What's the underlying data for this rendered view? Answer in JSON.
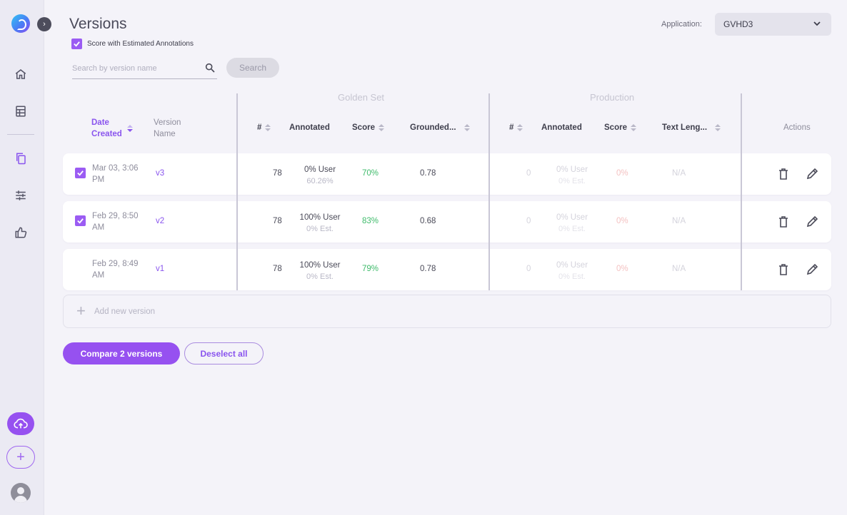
{
  "page": {
    "title": "Versions"
  },
  "estimate_toggle": {
    "label": "Score with Estimated Annotations",
    "checked": true
  },
  "search": {
    "placeholder": "Search by version name",
    "button_label": "Search"
  },
  "application": {
    "label": "Application:",
    "value": "GVHD3"
  },
  "groups": {
    "golden": "Golden Set",
    "production": "Production"
  },
  "columns": {
    "date": "Date Created",
    "version": "Version Name",
    "golden_count": "#",
    "golden_annotated": "Annotated",
    "golden_score": "Score",
    "golden_grounded": "Grounded...",
    "prod_count": "#",
    "prod_annotated": "Annotated",
    "prod_score": "Score",
    "prod_text_length": "Text Leng...",
    "actions": "Actions"
  },
  "rows": [
    {
      "checked": true,
      "date": "Mar 03, 3:06 PM",
      "version": "v3",
      "golden": {
        "count": "78",
        "annotated_user": "0% User",
        "annotated_est": "60.26%",
        "score": "70%",
        "grounded": "0.78"
      },
      "production": {
        "count": "0",
        "annotated_user": "0% User",
        "annotated_est": "0% Est.",
        "score": "0%",
        "text_length": "N/A"
      }
    },
    {
      "checked": true,
      "date": "Feb 29, 8:50 AM",
      "version": "v2",
      "golden": {
        "count": "78",
        "annotated_user": "100% User",
        "annotated_est": "0% Est.",
        "score": "83%",
        "grounded": "0.68"
      },
      "production": {
        "count": "0",
        "annotated_user": "0% User",
        "annotated_est": "0% Est.",
        "score": "0%",
        "text_length": "N/A"
      }
    },
    {
      "checked": false,
      "date": "Feb 29, 8:49 AM",
      "version": "v1",
      "golden": {
        "count": "78",
        "annotated_user": "100% User",
        "annotated_est": "0% Est.",
        "score": "79%",
        "grounded": "0.78"
      },
      "production": {
        "count": "0",
        "annotated_user": "0% User",
        "annotated_est": "0% Est.",
        "score": "0%",
        "text_length": "N/A"
      }
    }
  ],
  "add_version_label": "Add new version",
  "footer": {
    "compare_label": "Compare 2 versions",
    "deselect_label": "Deselect all"
  },
  "colors": {
    "accent": "#9651f0",
    "score_green": "#3fbb6b",
    "bg": "#f4f3f9"
  },
  "sidebar": {
    "icons": [
      "app-logo-icon",
      "expand-icon",
      "home-icon",
      "table-icon",
      "copy-icon",
      "sliders-icon",
      "thumbs-up-icon",
      "cloud-upload-icon",
      "plus-icon",
      "avatar"
    ]
  }
}
